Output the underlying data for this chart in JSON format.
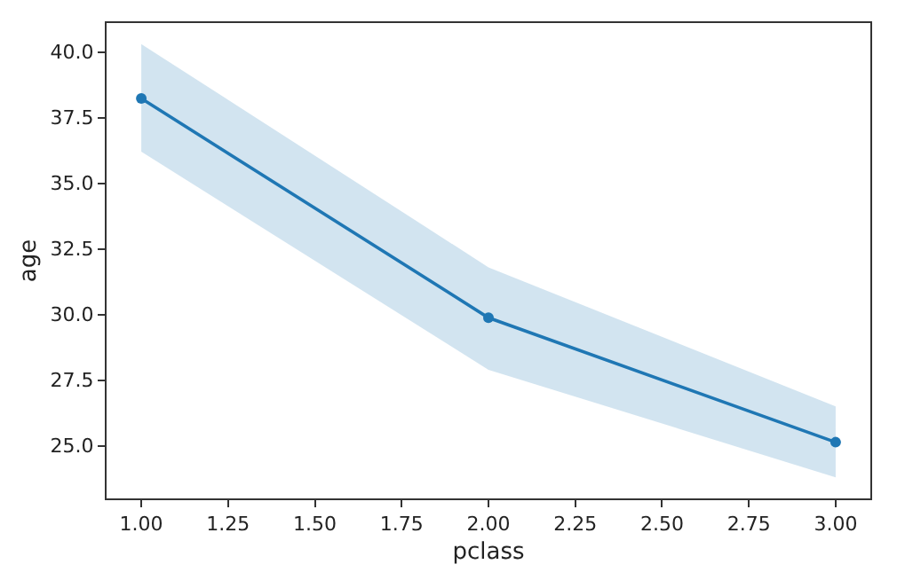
{
  "chart_data": {
    "type": "line",
    "xlabel": "pclass",
    "ylabel": "age",
    "x": [
      1,
      2,
      3
    ],
    "series": [
      {
        "color": "#1f77b4",
        "values": [
          38.23,
          29.88,
          25.14
        ],
        "lower": [
          36.2,
          27.9,
          23.8
        ],
        "upper": [
          40.3,
          31.8,
          26.5
        ]
      }
    ],
    "xlim": [
      0.9,
      3.1
    ],
    "ylim": [
      23.0,
      41.1
    ],
    "xticks": [
      {
        "value": 1,
        "label": "1.00"
      },
      {
        "value": 1.25,
        "label": "1.25"
      },
      {
        "value": 1.5,
        "label": "1.50"
      },
      {
        "value": 1.75,
        "label": "1.75"
      },
      {
        "value": 2,
        "label": "2.00"
      },
      {
        "value": 2.25,
        "label": "2.25"
      },
      {
        "value": 2.5,
        "label": "2.50"
      },
      {
        "value": 2.75,
        "label": "2.75"
      },
      {
        "value": 3,
        "label": "3.00"
      }
    ],
    "yticks": [
      {
        "value": 25,
        "label": "25.0"
      },
      {
        "value": 27.5,
        "label": "27.5"
      },
      {
        "value": 30,
        "label": "30.0"
      },
      {
        "value": 32.5,
        "label": "32.5"
      },
      {
        "value": 35,
        "label": "35.0"
      },
      {
        "value": 37.5,
        "label": "37.5"
      },
      {
        "value": 40,
        "label": "40.0"
      }
    ],
    "grid": false,
    "marker": "circle",
    "line_style": "solid"
  }
}
